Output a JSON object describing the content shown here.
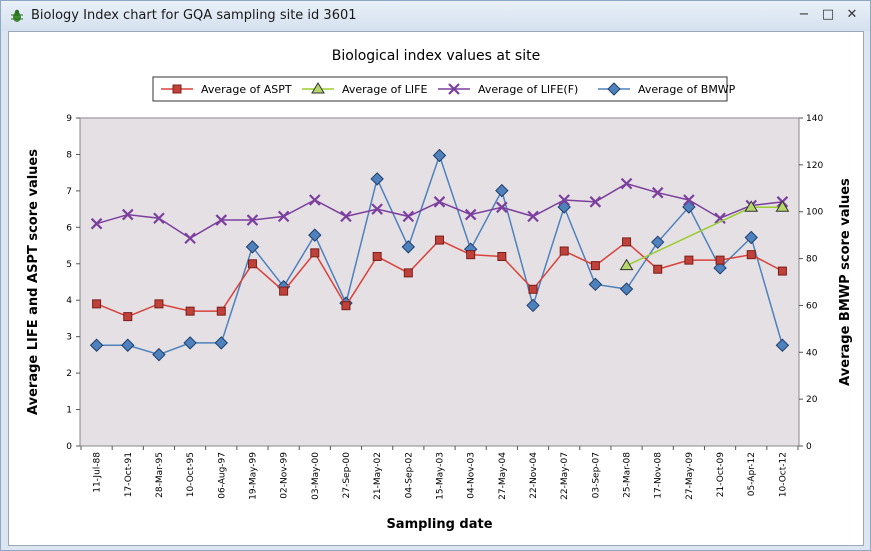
{
  "window": {
    "title": "Biology Index chart for GQA sampling site id 3601",
    "icon": "bug-icon",
    "controls": {
      "minimize": "−",
      "maximize": "□",
      "close": "✕"
    }
  },
  "chart_data": {
    "type": "line",
    "title": "Biological index values at site",
    "xlabel": "Sampling date",
    "ylabel": "Average LIFE  and ASPT score values",
    "y2label": "Average BMWP score values",
    "categories": [
      "11-Jul-88",
      "17-Oct-91",
      "28-Mar-95",
      "10-Oct-95",
      "06-Aug-97",
      "19-May-99",
      "02-Nov-99",
      "03-May-00",
      "27-Sep-00",
      "21-May-02",
      "04-Sep-02",
      "15-May-03",
      "04-Nov-03",
      "27-May-04",
      "22-Nov-04",
      "22-May-07",
      "03-Sep-07",
      "25-Mar-08",
      "17-Nov-08",
      "27-May-09",
      "21-Oct-09",
      "05-Apr-12",
      "10-Oct-12"
    ],
    "ylim": [
      0,
      9
    ],
    "y2lim": [
      0,
      140
    ],
    "yticks": [
      "0",
      "1",
      "2",
      "3",
      "4",
      "5",
      "6",
      "7",
      "8",
      "9"
    ],
    "y2ticks": [
      "0",
      "20",
      "40",
      "60",
      "80",
      "100",
      "120",
      "140"
    ],
    "legend_position": "top",
    "plot_background": "#e5e0e4",
    "series": [
      {
        "name": "Average of ASPT",
        "axis": "left",
        "color": "#d9413b",
        "fill": "#c0403a",
        "marker": "square",
        "values": [
          3.9,
          3.55,
          3.9,
          3.7,
          3.7,
          5.0,
          4.25,
          5.3,
          3.85,
          5.2,
          4.75,
          5.65,
          5.25,
          5.2,
          4.3,
          5.35,
          4.95,
          5.6,
          4.85,
          5.1,
          5.1,
          5.25,
          4.8
        ]
      },
      {
        "name": "Average of LIFE",
        "axis": "left",
        "color": "#9acd32",
        "fill": "#b5d66a",
        "marker": "triangle",
        "values": [
          null,
          null,
          null,
          null,
          null,
          null,
          null,
          null,
          null,
          null,
          null,
          null,
          null,
          null,
          null,
          null,
          null,
          4.95,
          null,
          null,
          null,
          6.55,
          6.55
        ]
      },
      {
        "name": "Average of LIFE(F)",
        "axis": "left",
        "color": "#7b3f9e",
        "fill": "#7b3f9e",
        "marker": "x",
        "values": [
          6.1,
          6.35,
          6.25,
          5.7,
          6.2,
          6.2,
          6.3,
          6.75,
          6.3,
          6.5,
          6.3,
          6.7,
          6.35,
          6.55,
          6.3,
          6.75,
          6.7,
          7.2,
          6.95,
          6.75,
          6.25,
          6.6,
          6.7
        ]
      },
      {
        "name": "Average of BMWP",
        "axis": "right",
        "color": "#4f81bd",
        "fill": "#4f81bd",
        "marker": "diamond",
        "values": [
          43,
          43,
          39,
          44,
          44,
          85,
          68,
          90,
          61,
          114,
          85,
          124,
          84,
          109,
          60,
          102,
          69,
          67,
          87,
          102,
          76,
          89,
          43
        ]
      }
    ]
  }
}
